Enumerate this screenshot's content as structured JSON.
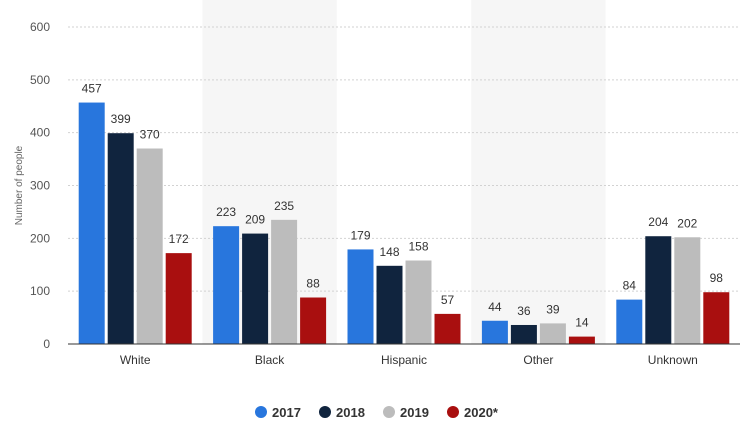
{
  "chart_data": {
    "type": "bar",
    "title": "",
    "xlabel": "",
    "ylabel": "Number of people",
    "ylim": [
      0,
      600
    ],
    "yticks": [
      0,
      100,
      200,
      300,
      400,
      500,
      600
    ],
    "grid": true,
    "legend_position": "bottom",
    "categories": [
      "White",
      "Black",
      "Hispanic",
      "Other",
      "Unknown"
    ],
    "series": [
      {
        "name": "2017",
        "color": "#2876dd",
        "values": [
          457,
          223,
          179,
          44,
          84
        ]
      },
      {
        "name": "2018",
        "color": "#10243e",
        "values": [
          399,
          209,
          148,
          36,
          204
        ]
      },
      {
        "name": "2019",
        "color": "#bcbcbc",
        "values": [
          370,
          235,
          158,
          39,
          202
        ]
      },
      {
        "name": "2020*",
        "color": "#a90f0f",
        "values": [
          172,
          88,
          57,
          14,
          98
        ]
      }
    ]
  }
}
